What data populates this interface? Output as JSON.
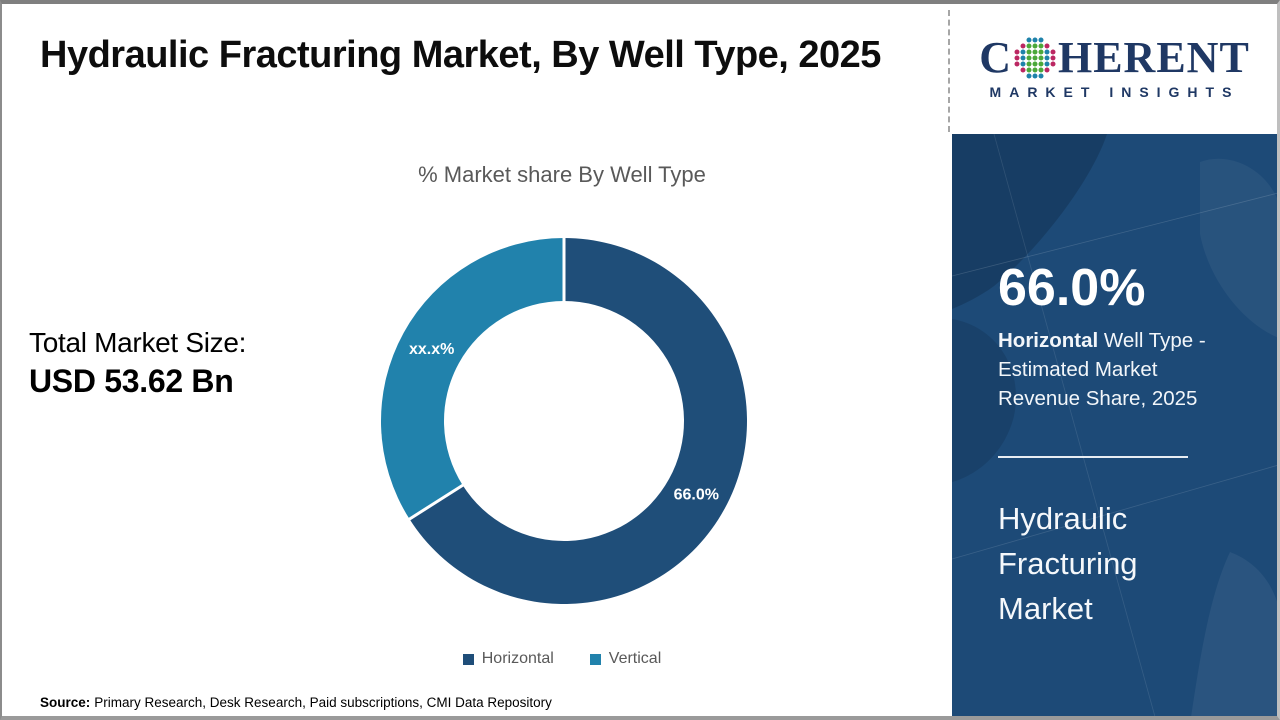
{
  "header": {
    "title": "Hydraulic Fracturing Market, By Well Type, 2025",
    "logo": {
      "brand_prefix": "C",
      "brand_suffix": "HERENT",
      "subtitle": "MARKET INSIGHTS",
      "brand_color": "#1f3864",
      "globe_dot_colors": {
        "inner": "#4ba83a",
        "middle": "#1e82aa",
        "outer": "#bb2762"
      }
    }
  },
  "left_panel": {
    "label": "Total Market Size:",
    "value": "USD 53.62 Bn"
  },
  "chart_data": {
    "type": "pie",
    "subtype": "donut",
    "title": "% Market share By Well Type",
    "start_angle_deg": 0,
    "direction": "clockwise",
    "legend_position": "bottom",
    "series": [
      {
        "name": "Horizontal",
        "value": 66.0,
        "label": "66.0%",
        "color": "#1f4e79"
      },
      {
        "name": "Vertical",
        "value": 34.0,
        "label": "xx.x%",
        "color": "#2182ac"
      }
    ]
  },
  "sidebar": {
    "background_color": "#1d4a77",
    "stat_value": "66.0%",
    "stat_desc_bold": "Horizontal",
    "stat_desc_rest": " Well Type - Estimated Market Revenue Share, 2025",
    "report_title": "Hydraulic Fracturing Market"
  },
  "footer": {
    "source_label": "Source:",
    "source_text": "Primary Research, Desk Research, Paid subscriptions, CMI Data Repository"
  }
}
